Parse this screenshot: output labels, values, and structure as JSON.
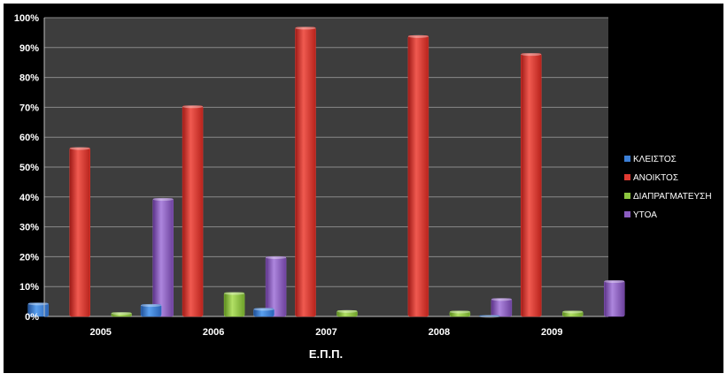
{
  "chart_data": {
    "type": "bar",
    "title": "",
    "xlabel": "Ε.Π.Π.",
    "ylabel": "",
    "categories": [
      "2005",
      "2006",
      "2007",
      "2008",
      "2009"
    ],
    "yticks": [
      "0%",
      "10%",
      "20%",
      "30%",
      "40%",
      "50%",
      "60%",
      "70%",
      "80%",
      "90%",
      "100%"
    ],
    "ylim": [
      0,
      100
    ],
    "grid": true,
    "legend_position": "right",
    "series": [
      {
        "name": "ΚΛΕΙΣΤΟΣ",
        "color": "#3b7fd6",
        "values": [
          4.5,
          4.0,
          2.7,
          0,
          0.3
        ]
      },
      {
        "name": "ΑΝΟΙΚΤΟΣ",
        "color": "#e03a32",
        "values": [
          56.5,
          70.5,
          96.8,
          94.0,
          88.0
        ]
      },
      {
        "name": "ΔΙΑΠΡΑΓΜΑΤΕΥΣΗ",
        "color": "#8cc63f",
        "values": [
          1.3,
          8.0,
          2.0,
          1.8,
          1.8
        ]
      },
      {
        "name": "ΥΤΟΑ",
        "color": "#8a5cc0",
        "values": [
          39.5,
          20.0,
          0,
          6.0,
          12.0
        ]
      }
    ]
  }
}
